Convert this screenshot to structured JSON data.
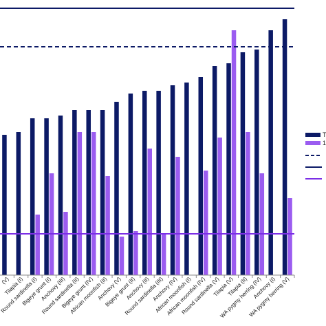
{
  "chart_data": {
    "type": "bar",
    "categories": [
      "(V)",
      "Tilapia (I)",
      "Round sardinella (I)",
      "Bigeye grunt (I)",
      "Anchovy (III)",
      "Round sardinella (II)",
      "Bigeye grunt (IV)",
      "African moonfish (II)",
      "Anchovy (V)",
      "Bigeye grunt (II)",
      "Anchovy (II)",
      "Round sardinella (III)",
      "Anchovy (IV)",
      "African moonfish (I)",
      "African moonfish (IV)",
      "Round sardinella (V)",
      "Tilapia (V)",
      "Tilapia (II)",
      "WA pygmy herring (IV)",
      "Anchovy (I)",
      "WA pygmy herring (V)"
    ],
    "series": [
      {
        "values": [
          2.55,
          2.6,
          2.85,
          2.85,
          2.9,
          3.0,
          3.0,
          3.0,
          3.15,
          3.3,
          3.35,
          3.35,
          3.45,
          3.5,
          3.6,
          3.8,
          3.85,
          4.05,
          4.1,
          4.45,
          4.65
        ],
        "color": "#0c1a66"
      },
      {
        "values": [
          0,
          0,
          1.1,
          1.85,
          1.15,
          2.6,
          2.6,
          1.8,
          0.7,
          0.8,
          2.3,
          0.75,
          2.15,
          0,
          1.9,
          2.5,
          4.45,
          2.6,
          1.85,
          0,
          1.4
        ],
        "color": "#9b5cf0"
      }
    ],
    "reference_lines": [
      {
        "value": 4.85,
        "style": "solid",
        "color": "#0c1a66"
      },
      {
        "value": 4.15,
        "style": "dashed",
        "color": "#0c1a66"
      },
      {
        "value": 0.75,
        "style": "solid",
        "color": "#7b2ee6"
      }
    ],
    "ylim": [
      0,
      4.9
    ],
    "grid": false,
    "legend": {
      "position": "right",
      "entries": [
        {
          "label": "T",
          "marker": "bar",
          "color": "#0c1a66"
        },
        {
          "label": "1",
          "marker": "bar",
          "color": "#9b5cf0"
        },
        {
          "label": "",
          "marker": "dashed-line",
          "color": "#0c1a66"
        },
        {
          "label": "",
          "marker": "line",
          "color": "#0c1a66"
        },
        {
          "label": "",
          "marker": "line",
          "color": "#7b2ee6"
        }
      ]
    }
  }
}
